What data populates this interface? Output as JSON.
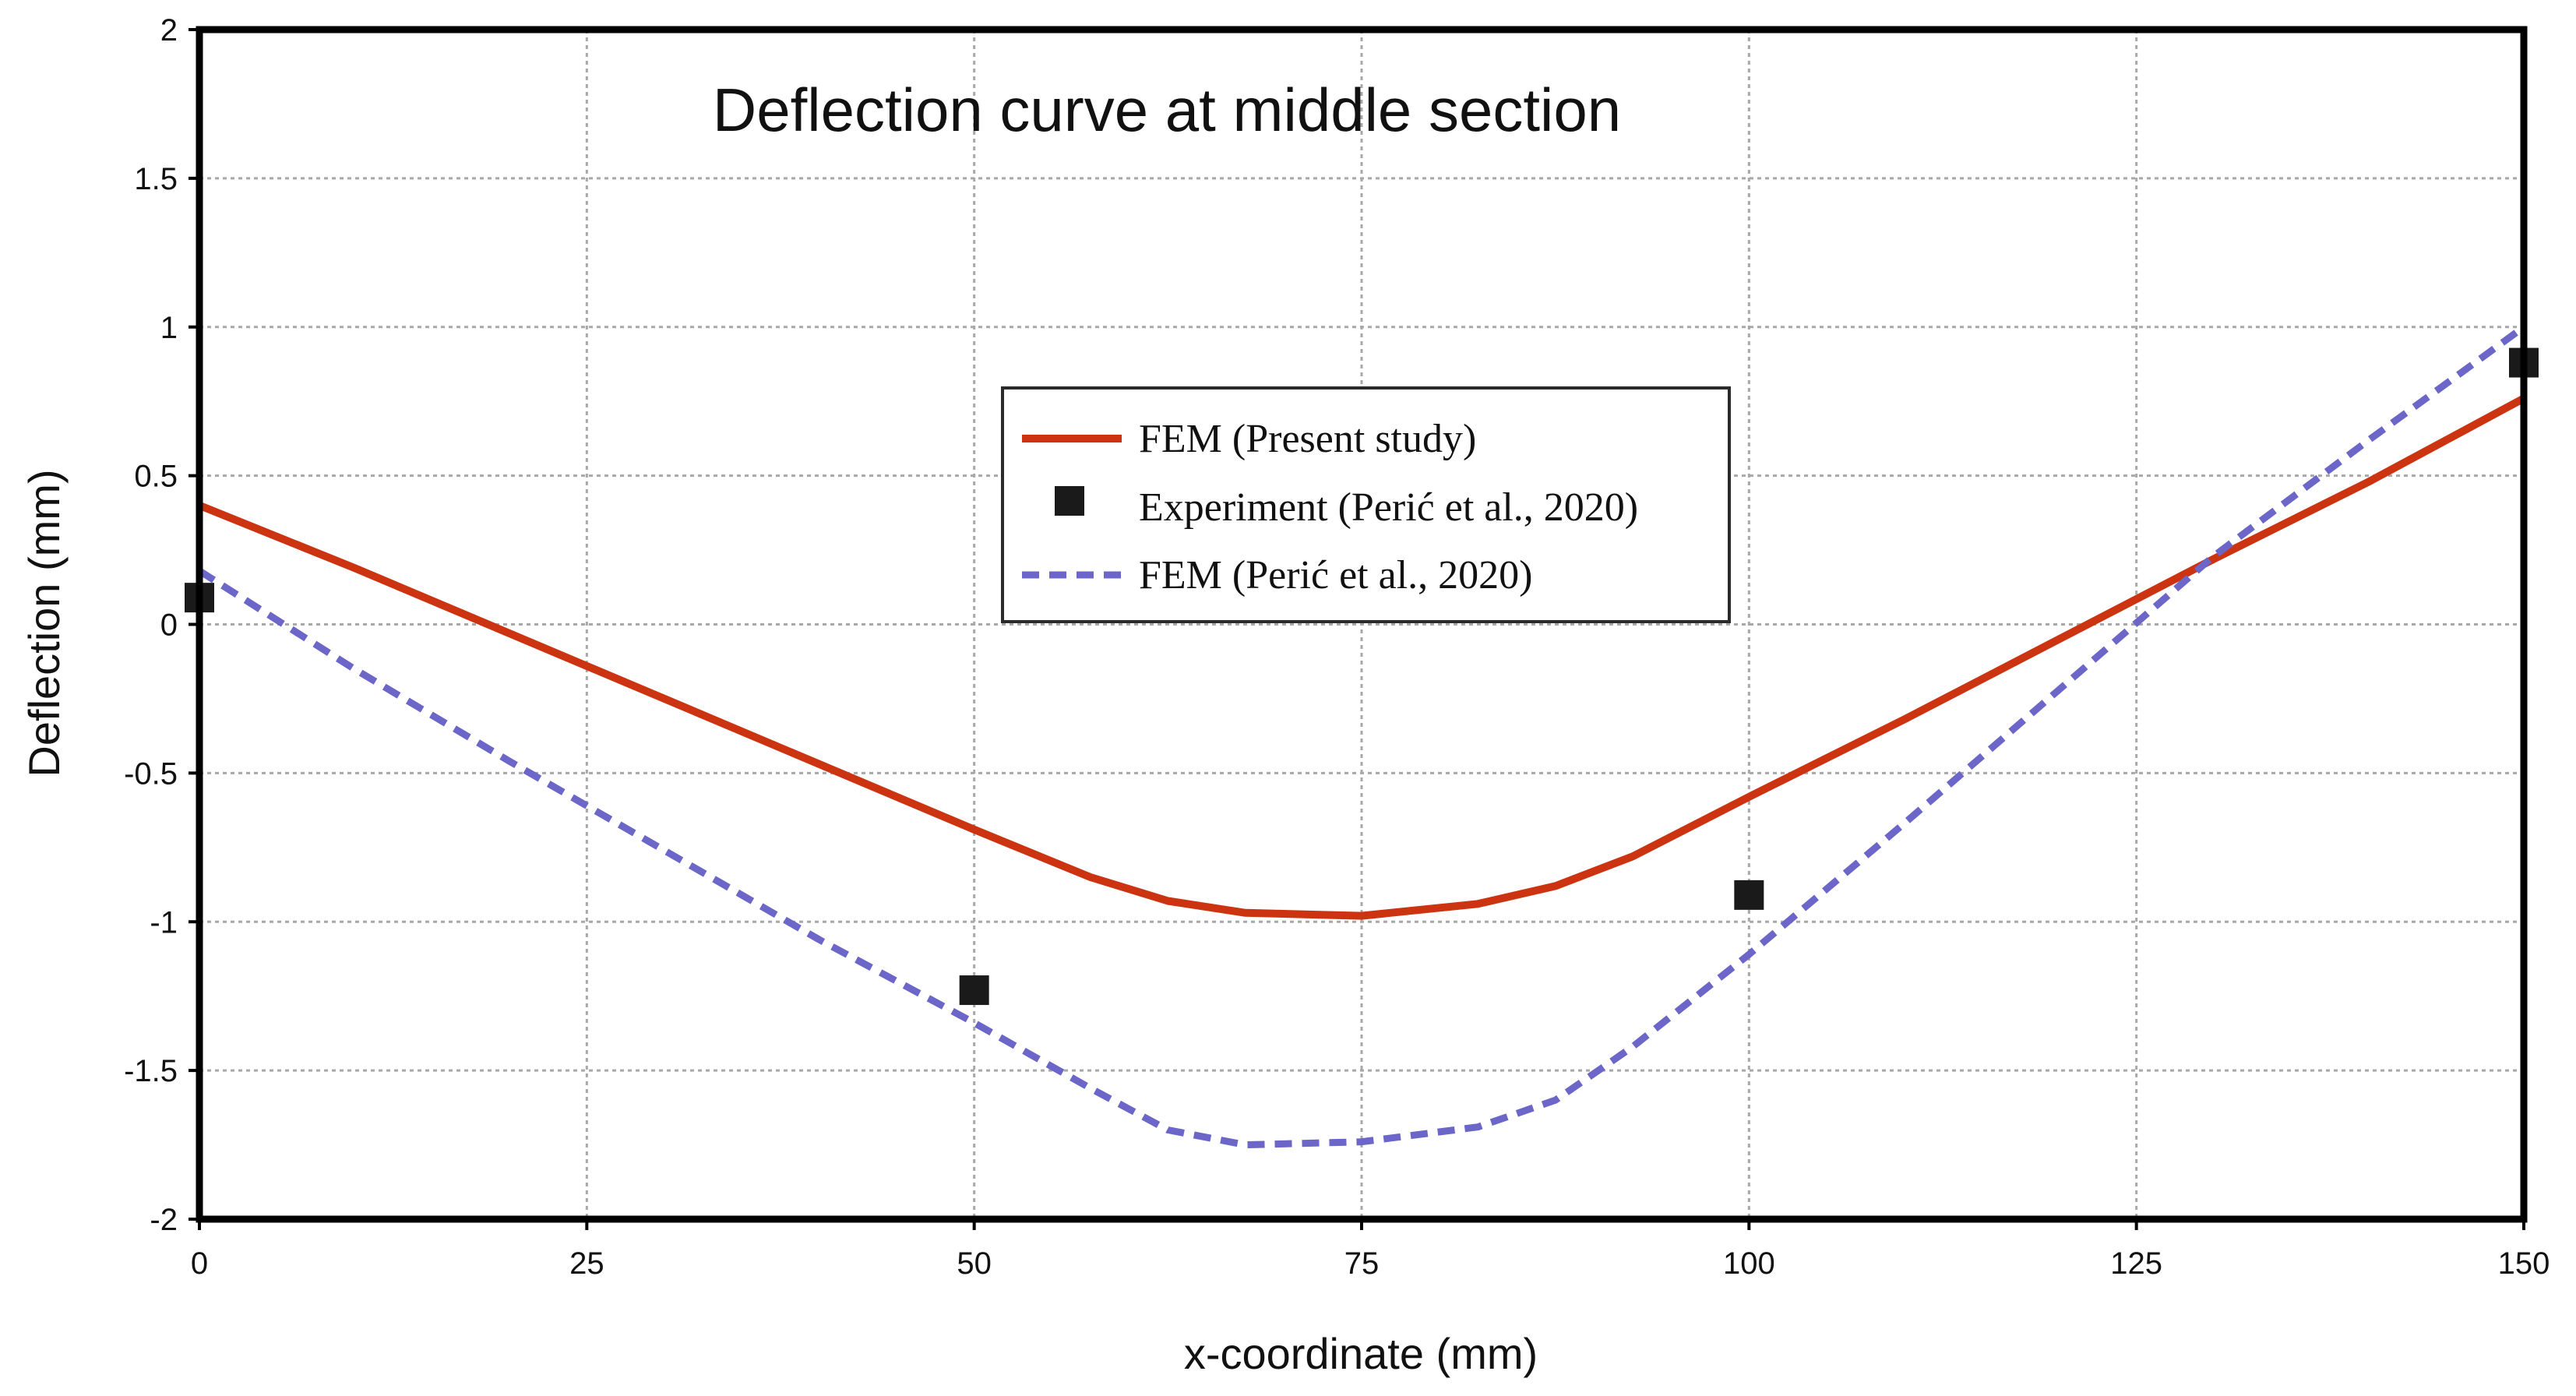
{
  "chart_data": {
    "type": "line",
    "title": "Deflection curve at middle section",
    "xlabel": "x-coordinate (mm)",
    "ylabel": "Deflection (mm)",
    "xlim": [
      0,
      150
    ],
    "ylim": [
      -2,
      2
    ],
    "grid": true,
    "legend_position": "center",
    "x_ticks": [
      0,
      25,
      50,
      75,
      100,
      125,
      150
    ],
    "x_tick_labels": [
      "0",
      "25",
      "50",
      "75",
      "100",
      "125",
      "150"
    ],
    "y_ticks": [
      2,
      1.5,
      1,
      0.5,
      0,
      -0.5,
      -1,
      -1.5,
      -2
    ],
    "y_tick_labels": [
      "2",
      "1.5",
      "1",
      "0.5",
      "0",
      "-0.5",
      "-1",
      "-1.5",
      "-2"
    ],
    "series": [
      {
        "name": "FEM (Present study)",
        "style": "solid-line",
        "color": "#cc3311",
        "x": [
          0,
          10,
          20,
          30,
          40,
          50,
          57.5,
          62.5,
          67.5,
          75,
          82.5,
          87.5,
          92.5,
          100,
          110,
          120,
          130,
          140,
          150
        ],
        "y": [
          0.4,
          0.19,
          -0.03,
          -0.25,
          -0.47,
          -0.69,
          -0.85,
          -0.93,
          -0.97,
          -0.98,
          -0.94,
          -0.88,
          -0.78,
          -0.58,
          -0.32,
          -0.05,
          0.22,
          0.48,
          0.76
        ]
      },
      {
        "name": "Experiment (Perić et al., 2020)",
        "style": "markers",
        "color": "#1a1a1a",
        "x": [
          0,
          50,
          100,
          150
        ],
        "y": [
          0.09,
          -1.23,
          -0.91,
          0.88
        ]
      },
      {
        "name": "FEM (Perić et al., 2020)",
        "style": "dashed-line",
        "color": "#6b66c8",
        "x": [
          0,
          10,
          20,
          30,
          40,
          50,
          57.5,
          62.5,
          67.5,
          75,
          82.5,
          87.5,
          92.5,
          100,
          110,
          120,
          130,
          140,
          150
        ],
        "y": [
          0.18,
          -0.15,
          -0.46,
          -0.76,
          -1.06,
          -1.34,
          -1.56,
          -1.7,
          -1.75,
          -1.74,
          -1.69,
          -1.6,
          -1.42,
          -1.11,
          -0.67,
          -0.22,
          0.23,
          0.62,
          1.0
        ]
      }
    ]
  }
}
